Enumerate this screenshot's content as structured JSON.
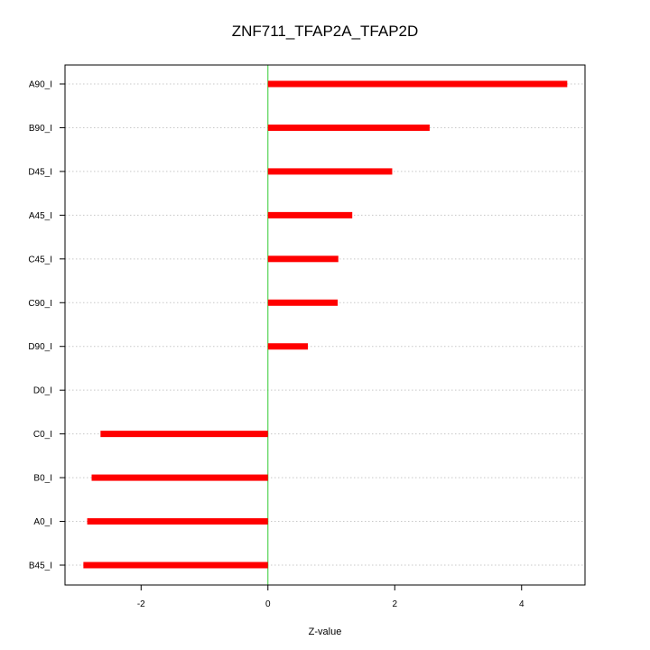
{
  "chart_data": {
    "type": "bar",
    "orientation": "horizontal",
    "title": "ZNF711_TFAP2A_TFAP2D",
    "xlabel": "Z-value",
    "ylabel": "",
    "xlim": [
      -3.2,
      5.0
    ],
    "xticks": [
      -2,
      0,
      2,
      4
    ],
    "xtick_labels": [
      "-2",
      "0",
      "2",
      "4"
    ],
    "grid": "horizontal dotted",
    "reference_line_x": 0,
    "categories": [
      "A90_I",
      "B90_I",
      "D45_I",
      "A45_I",
      "C45_I",
      "C90_I",
      "D90_I",
      "D0_I",
      "C0_I",
      "B0_I",
      "A0_I",
      "B45_I"
    ],
    "values": [
      4.72,
      2.55,
      1.96,
      1.33,
      1.11,
      1.1,
      0.63,
      0.0,
      -2.64,
      -2.78,
      -2.85,
      -2.91
    ],
    "colors": {
      "bar": "#ff0000",
      "reference_line": "#33cc33",
      "grid": "#c8c8c8",
      "frame": "#000000"
    }
  }
}
